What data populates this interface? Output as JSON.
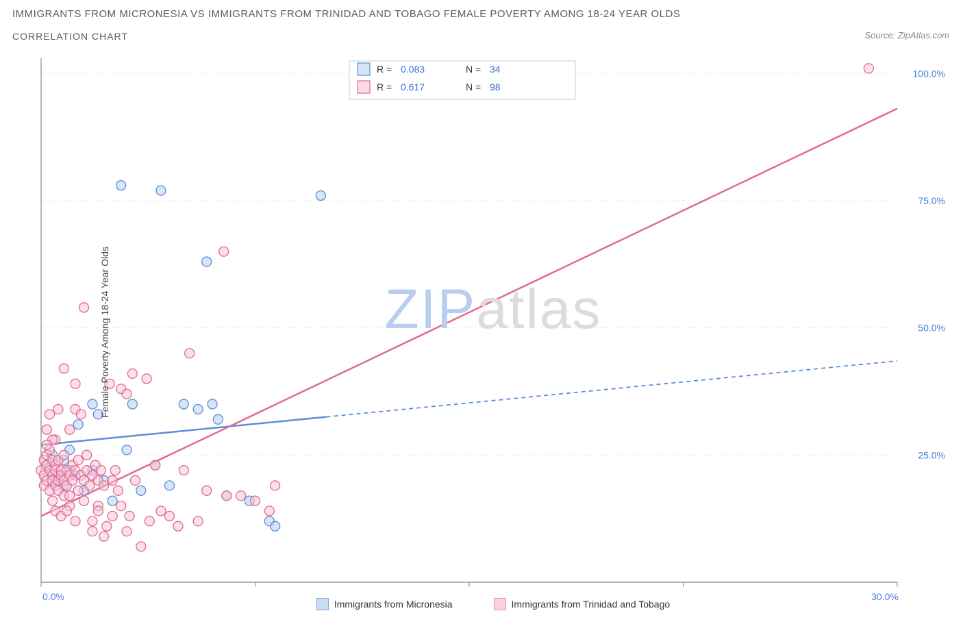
{
  "title": "IMMIGRANTS FROM MICRONESIA VS IMMIGRANTS FROM TRINIDAD AND TOBAGO FEMALE POVERTY AMONG 18-24 YEAR OLDS",
  "subtitle": "CORRELATION CHART",
  "source_label": "Source: ZipAtlas.com",
  "ylabel": "Female Poverty Among 18-24 Year Olds",
  "watermark_a": "ZIP",
  "watermark_b": "atlas",
  "chart": {
    "type": "scatter",
    "xlim": [
      0,
      30
    ],
    "ylim": [
      0,
      103
    ],
    "xticks": [
      0,
      30
    ],
    "xtick_labels": [
      "0.0%",
      "30.0%"
    ],
    "x_minor_ticks": [
      7.5,
      15,
      22.5
    ],
    "yticks": [
      25,
      50,
      75,
      100
    ],
    "ytick_labels": [
      "25.0%",
      "50.0%",
      "75.0%",
      "100.0%"
    ],
    "background": "#ffffff",
    "grid_color": "#e8e8e8",
    "axis_color": "#888888",
    "series": [
      {
        "id": "micronesia",
        "label": "Immigrants from Micronesia",
        "color_stroke": "#5b8ed6",
        "color_fill": "#b9d0f0",
        "marker_radius": 7,
        "R_label": "R = ",
        "R": "0.083",
        "N_label": "N = ",
        "N": "34",
        "trend": {
          "slope": 0.55,
          "intercept": 27,
          "solid_until_x": 10
        },
        "points": [
          [
            0.2,
            23
          ],
          [
            0.3,
            22
          ],
          [
            0.4,
            25
          ],
          [
            0.5,
            20
          ],
          [
            0.6,
            21
          ],
          [
            0.8,
            24
          ],
          [
            0.8,
            19
          ],
          [
            1.0,
            22
          ],
          [
            1.0,
            26
          ],
          [
            1.2,
            21
          ],
          [
            1.3,
            31
          ],
          [
            1.5,
            18
          ],
          [
            1.8,
            22
          ],
          [
            1.8,
            35
          ],
          [
            2.0,
            33
          ],
          [
            2.2,
            20
          ],
          [
            2.5,
            16
          ],
          [
            2.8,
            78
          ],
          [
            3.0,
            26
          ],
          [
            3.2,
            35
          ],
          [
            3.5,
            18
          ],
          [
            4.0,
            23
          ],
          [
            4.2,
            77
          ],
          [
            4.5,
            19
          ],
          [
            5.0,
            35
          ],
          [
            5.5,
            34
          ],
          [
            5.8,
            63
          ],
          [
            6.2,
            32
          ],
          [
            6.5,
            17
          ],
          [
            7.3,
            16
          ],
          [
            8.0,
            12
          ],
          [
            8.2,
            11
          ],
          [
            9.8,
            76
          ],
          [
            6.0,
            35
          ]
        ]
      },
      {
        "id": "trinidad",
        "label": "Immigrants from Trinidad and Tobago",
        "color_stroke": "#e06a93",
        "color_fill": "#f7c5d7",
        "marker_radius": 7,
        "R_label": "R = ",
        "R": "0.617",
        "N_label": "N = ",
        "N": "98",
        "trend": {
          "slope": 2.67,
          "intercept": 13,
          "solid_until_x": 30
        },
        "points": [
          [
            0.0,
            22
          ],
          [
            0.1,
            24
          ],
          [
            0.1,
            19
          ],
          [
            0.1,
            21
          ],
          [
            0.2,
            23
          ],
          [
            0.2,
            20
          ],
          [
            0.2,
            25
          ],
          [
            0.2,
            30
          ],
          [
            0.3,
            22
          ],
          [
            0.3,
            18
          ],
          [
            0.3,
            26
          ],
          [
            0.4,
            21
          ],
          [
            0.4,
            20
          ],
          [
            0.4,
            24
          ],
          [
            0.4,
            16
          ],
          [
            0.5,
            23
          ],
          [
            0.5,
            19
          ],
          [
            0.5,
            22
          ],
          [
            0.5,
            28
          ],
          [
            0.6,
            20
          ],
          [
            0.6,
            24
          ],
          [
            0.6,
            18
          ],
          [
            0.7,
            22
          ],
          [
            0.7,
            21
          ],
          [
            0.8,
            20
          ],
          [
            0.8,
            25
          ],
          [
            0.8,
            17
          ],
          [
            0.8,
            42
          ],
          [
            0.9,
            22
          ],
          [
            0.9,
            19
          ],
          [
            1.0,
            30
          ],
          [
            1.0,
            21
          ],
          [
            1.0,
            15
          ],
          [
            1.0,
            17
          ],
          [
            1.1,
            23
          ],
          [
            1.1,
            20
          ],
          [
            1.2,
            39
          ],
          [
            1.2,
            22
          ],
          [
            1.2,
            12
          ],
          [
            1.3,
            24
          ],
          [
            1.3,
            18
          ],
          [
            1.4,
            21
          ],
          [
            1.5,
            20
          ],
          [
            1.5,
            54
          ],
          [
            1.5,
            16
          ],
          [
            1.6,
            22
          ],
          [
            1.6,
            25
          ],
          [
            1.7,
            19
          ],
          [
            1.8,
            21
          ],
          [
            1.8,
            12
          ],
          [
            1.8,
            10
          ],
          [
            1.9,
            23
          ],
          [
            2.0,
            20
          ],
          [
            2.0,
            15
          ],
          [
            2.0,
            14
          ],
          [
            2.1,
            22
          ],
          [
            2.2,
            19
          ],
          [
            2.2,
            9
          ],
          [
            2.3,
            11
          ],
          [
            2.4,
            39
          ],
          [
            2.5,
            20
          ],
          [
            2.5,
            13
          ],
          [
            2.6,
            22
          ],
          [
            2.7,
            18
          ],
          [
            2.8,
            38
          ],
          [
            2.8,
            15
          ],
          [
            3.0,
            10
          ],
          [
            3.0,
            37
          ],
          [
            3.1,
            13
          ],
          [
            3.2,
            41
          ],
          [
            3.3,
            20
          ],
          [
            3.5,
            7
          ],
          [
            3.7,
            40
          ],
          [
            3.8,
            12
          ],
          [
            4.0,
            23
          ],
          [
            4.2,
            14
          ],
          [
            4.5,
            13
          ],
          [
            4.8,
            11
          ],
          [
            5.0,
            22
          ],
          [
            5.2,
            45
          ],
          [
            5.5,
            12
          ],
          [
            5.8,
            18
          ],
          [
            6.4,
            65
          ],
          [
            6.5,
            17
          ],
          [
            7.0,
            17
          ],
          [
            7.5,
            16
          ],
          [
            8.0,
            14
          ],
          [
            8.2,
            19
          ],
          [
            1.2,
            34
          ],
          [
            1.4,
            33
          ],
          [
            0.6,
            34
          ],
          [
            0.3,
            33
          ],
          [
            0.4,
            28
          ],
          [
            0.2,
            27
          ],
          [
            0.5,
            14
          ],
          [
            0.7,
            13
          ],
          [
            0.9,
            14
          ],
          [
            29.0,
            101
          ]
        ]
      }
    ]
  },
  "stats_legend": {
    "border_color": "#cccccc",
    "bg": "#ffffff"
  }
}
